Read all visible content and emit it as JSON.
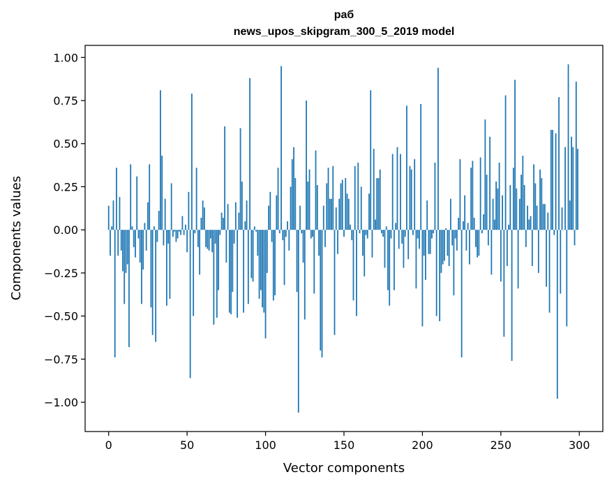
{
  "chart_data": {
    "type": "bar",
    "title": "раб",
    "subtitle": "news_upos_skipgram_300_5_2019 model",
    "xlabel": "Vector components",
    "ylabel": "Components values",
    "xlim": [
      -15,
      315
    ],
    "ylim": [
      -1.17,
      1.07
    ],
    "xticks": [
      0,
      50,
      100,
      150,
      200,
      250,
      300
    ],
    "yticks": [
      1.0,
      0.75,
      0.5,
      0.25,
      0.0,
      -0.25,
      -0.5,
      -0.75,
      -1.0
    ],
    "ytick_labels": [
      "1.00",
      "0.75",
      "0.50",
      "0.25",
      "0.00",
      "−0.25",
      "−0.50",
      "−0.75",
      "−1.00"
    ],
    "grid": false,
    "bar_color": "#1f77b4",
    "x": "component index 0..299",
    "values": [
      0.14,
      -0.15,
      0.02,
      0.17,
      -0.74,
      0.36,
      -0.15,
      0.19,
      -0.12,
      -0.24,
      -0.43,
      -0.25,
      -0.2,
      -0.68,
      0.38,
      0.02,
      -0.1,
      -0.16,
      0.31,
      -0.05,
      -0.19,
      -0.43,
      -0.23,
      0.04,
      -0.12,
      0.16,
      0.38,
      -0.45,
      -0.61,
      0.02,
      -0.65,
      -0.07,
      0.11,
      0.81,
      0.43,
      -0.09,
      0.18,
      -0.44,
      -0.08,
      -0.4,
      0.27,
      -0.04,
      -0.01,
      -0.07,
      -0.05,
      -0.01,
      -0.03,
      0.08,
      -0.03,
      0.03,
      -0.13,
      0.22,
      -0.86,
      0.79,
      -0.5,
      -0.02,
      0.36,
      -0.1,
      -0.26,
      0.07,
      0.17,
      0.13,
      -0.1,
      -0.11,
      -0.12,
      -0.05,
      -0.13,
      -0.55,
      -0.08,
      -0.51,
      -0.35,
      -0.03,
      0.1,
      0.07,
      0.6,
      -0.19,
      0.15,
      -0.48,
      -0.49,
      -0.36,
      -0.08,
      0.16,
      -0.51,
      0.1,
      0.59,
      0.28,
      -0.48,
      0.05,
      0.17,
      -0.43,
      0.88,
      -0.28,
      -0.3,
      0.02,
      -0.01,
      -0.15,
      -0.4,
      -0.35,
      -0.45,
      -0.48,
      -0.63,
      -0.25,
      0.14,
      0.22,
      -0.07,
      -0.41,
      -0.38,
      0.2,
      0.36,
      -0.02,
      0.95,
      -0.06,
      -0.32,
      -0.04,
      0.05,
      -0.12,
      0.25,
      0.41,
      0.48,
      0.3,
      -0.36,
      -1.06,
      0.14,
      -0.02,
      -0.19,
      -0.52,
      0.75,
      0.28,
      0.35,
      -0.05,
      -0.04,
      -0.37,
      0.46,
      0.26,
      -0.15,
      -0.7,
      -0.74,
      0.14,
      -0.1,
      0.27,
      0.36,
      0.18,
      0.18,
      0.37,
      -0.61,
      0.13,
      -0.14,
      0.18,
      0.27,
      0.29,
      -0.04,
      0.3,
      0.21,
      0.18,
      0.03,
      -0.06,
      -0.41,
      0.37,
      -0.5,
      0.39,
      -0.02,
      0.25,
      -0.15,
      -0.27,
      -0.03,
      -0.05,
      0.21,
      0.81,
      -0.16,
      0.47,
      0.06,
      0.3,
      0.3,
      0.35,
      -0.02,
      -0.04,
      -0.22,
      0.02,
      -0.35,
      -0.44,
      -0.05,
      0.44,
      -0.35,
      0.04,
      0.48,
      -0.11,
      0.44,
      -0.08,
      -0.22,
      -0.04,
      0.72,
      -0.17,
      0.37,
      0.35,
      -0.03,
      0.41,
      -0.34,
      -0.05,
      -0.11,
      0.73,
      -0.56,
      -0.15,
      -0.29,
      0.17,
      -0.14,
      -0.14,
      -0.05,
      -0.02,
      0.39,
      -0.5,
      0.94,
      -0.53,
      -0.25,
      -0.2,
      -0.18,
      0.01,
      -0.15,
      -0.21,
      0.18,
      -0.09,
      -0.38,
      -0.05,
      -0.12,
      0.07,
      0.41,
      -0.74,
      0.05,
      0.2,
      -0.12,
      0.04,
      -0.2,
      0.36,
      0.4,
      0.07,
      -0.1,
      -0.16,
      -0.15,
      0.42,
      -0.02,
      0.09,
      0.64,
      0.32,
      -0.09,
      0.54,
      -0.26,
      0.18,
      0.06,
      0.28,
      0.24,
      0.39,
      -0.3,
      0.2,
      -0.62,
      0.78,
      -0.21,
      0.03,
      0.26,
      -0.76,
      0.36,
      0.87,
      0.24,
      -0.34,
      0.18,
      0.32,
      0.43,
      0.26,
      -0.1,
      0.14,
      0.06,
      0.08,
      -0.21,
      0.38,
      0.27,
      0.14,
      -0.25,
      0.35,
      0.3,
      0.15,
      0.15,
      -0.33,
      0.1,
      -0.48,
      0.58,
      0.58,
      -0.03,
      0.56,
      -0.98,
      0.77,
      -0.37,
      0.13,
      0.0,
      0.48,
      -0.56,
      0.96,
      0.17,
      0.54,
      0.48,
      -0.09,
      0.86,
      0.47
    ]
  }
}
